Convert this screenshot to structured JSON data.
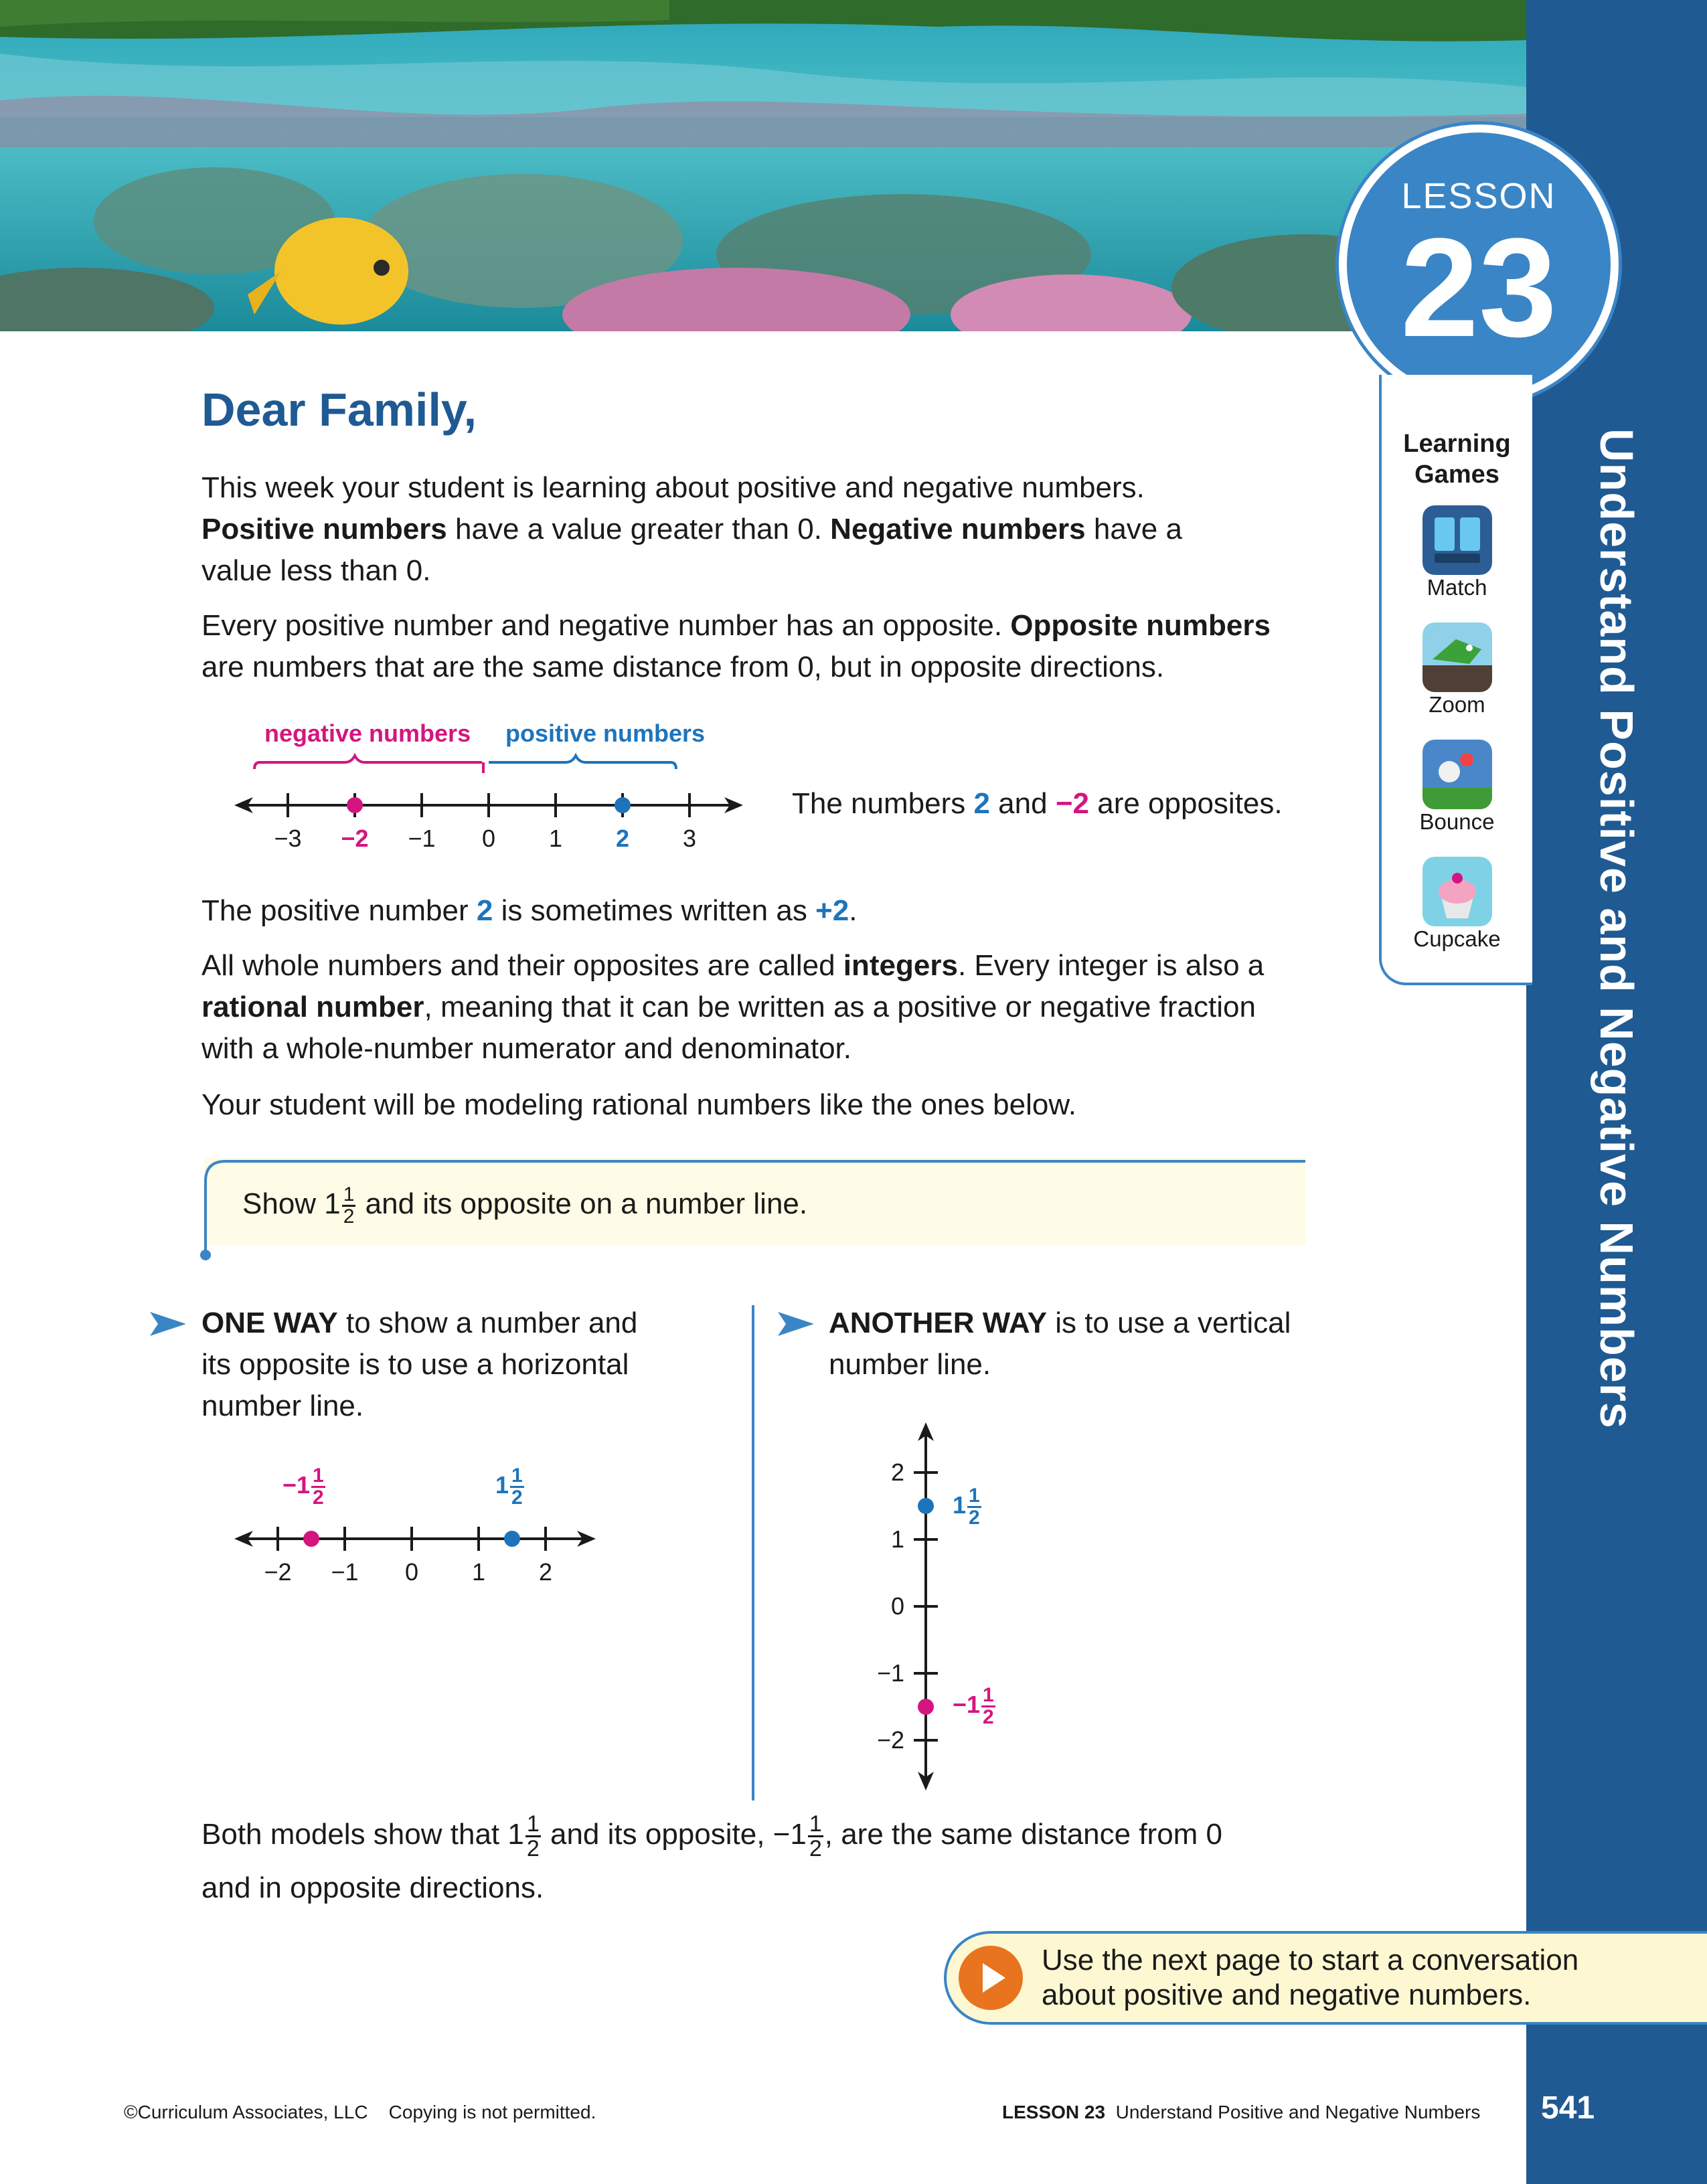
{
  "lesson": {
    "label": "LESSON",
    "number": "23",
    "band_title": "Understand Positive and Negative Numbers"
  },
  "learning_games": {
    "title_line1": "Learning",
    "title_line2": "Games",
    "items": [
      {
        "label": "Match",
        "icon": "match-game-icon"
      },
      {
        "label": "Zoom",
        "icon": "zoom-game-icon"
      },
      {
        "label": "Bounce",
        "icon": "bounce-game-icon"
      },
      {
        "label": "Cupcake",
        "icon": "cupcake-game-icon"
      }
    ]
  },
  "letter": {
    "title": "Dear Family,",
    "p1_line1": "This week your student is learning about positive and negative numbers.",
    "p1_b1": "Positive numbers",
    "p1_t1": " have a value greater than 0. ",
    "p1_b2": "Negative numbers",
    "p1_t2": " have a",
    "p1_line3": "value less than 0.",
    "p2_t1": "Every positive number and negative number has an opposite. ",
    "p2_b1": "Opposite numbers",
    "p2_line2": "are numbers that are the same distance from 0, but in opposite directions.",
    "neg_label": "negative numbers",
    "pos_label": "positive numbers",
    "opposites_t1": "The numbers ",
    "opposites_v1": "2",
    "opposites_t2": " and ",
    "opposites_v2": "−2",
    "opposites_t3": " are opposites.",
    "p3_t1": "The positive number ",
    "p3_v1": "2",
    "p3_t2": " is sometimes written as ",
    "p3_v2": "+2",
    "p3_t3": ".",
    "p4_t1": "All whole numbers and their opposites are called ",
    "p4_b1": "integers",
    "p4_t2": ". Every integer is also a",
    "p4_b2": "rational number",
    "p4_t3": ", meaning that it can be written as a positive or negative fraction",
    "p4_line3": "with a whole-number numerator and denominator.",
    "p5": "Your student will be modeling rational numbers like the ones below."
  },
  "number_line_1": {
    "ticks": [
      "−3",
      "−2",
      "−1",
      "0",
      "1",
      "2",
      "3"
    ],
    "points": [
      -2,
      2
    ]
  },
  "callout": {
    "t1": "Show 1",
    "num": "1",
    "den": "2",
    "t2": " and its opposite on a number line."
  },
  "one_way": {
    "b": "ONE WAY",
    "t1": " to show a number and",
    "line2": "its opposite is to use a horizontal",
    "line3": "number line."
  },
  "another_way": {
    "b": "ANOTHER WAY",
    "t1": " is to use a vertical",
    "line2": "number line."
  },
  "number_line_2": {
    "ticks": [
      "−2",
      "−1",
      "0",
      "1",
      "2"
    ],
    "points": [
      -1.5,
      1.5
    ],
    "neg_whole": "−1",
    "pos_whole": "1",
    "num": "1",
    "den": "2"
  },
  "number_line_3": {
    "ticks": [
      "2",
      "1",
      "0",
      "−1",
      "−2"
    ],
    "points": [
      1.5,
      -1.5
    ],
    "neg_whole": "−1",
    "pos_whole": "1",
    "num": "1",
    "den": "2"
  },
  "conclusion": {
    "t1": "Both models show that 1",
    "t2": " and its opposite, −1",
    "t3": ", are the same distance from 0",
    "line2": "and in opposite directions.",
    "num": "1",
    "den": "2"
  },
  "cta": {
    "line1": "Use the next page to start a conversation",
    "line2": "about positive and negative numbers."
  },
  "footer": {
    "left": "©Curriculum Associates, LLC    Copying is not permitted.",
    "lesson": "LESSON 23",
    "title": "  Understand Positive and Negative Numbers",
    "page": "541"
  },
  "colors": {
    "band": "#1f5a93",
    "accent": "#3a85c6",
    "blue": "#1d74bb",
    "pink": "#d4157f",
    "cta_play": "#e8741f"
  }
}
